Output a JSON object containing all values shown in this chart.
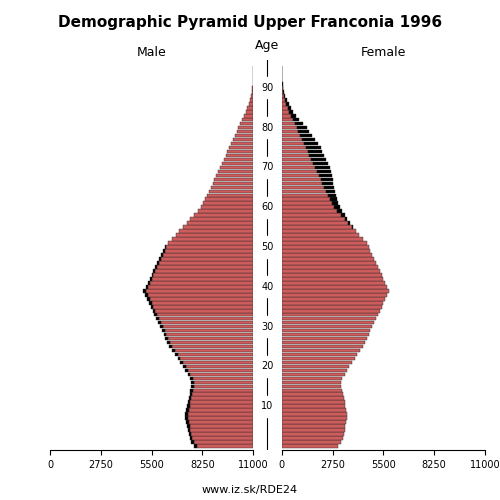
{
  "title": "Demographic Pyramid Upper Franconia 1996",
  "url": "www.iz.sk/RDE24",
  "bar_color": "#cd5c5c",
  "black_color": "#000000",
  "edge_color": "#2a2a2a",
  "xlim": 11000,
  "xticks": [
    0,
    2750,
    5500,
    8250,
    11000
  ],
  "age_ticks": [
    10,
    20,
    30,
    40,
    50,
    60,
    70,
    80,
    90
  ],
  "ages": [
    0,
    1,
    2,
    3,
    4,
    5,
    6,
    7,
    8,
    9,
    10,
    11,
    12,
    13,
    14,
    15,
    16,
    17,
    18,
    19,
    20,
    21,
    22,
    23,
    24,
    25,
    26,
    27,
    28,
    29,
    30,
    31,
    32,
    33,
    34,
    35,
    36,
    37,
    38,
    39,
    40,
    41,
    42,
    43,
    44,
    45,
    46,
    47,
    48,
    49,
    50,
    51,
    52,
    53,
    54,
    55,
    56,
    57,
    58,
    59,
    60,
    61,
    62,
    63,
    64,
    65,
    66,
    67,
    68,
    69,
    70,
    71,
    72,
    73,
    74,
    75,
    76,
    77,
    78,
    79,
    80,
    81,
    82,
    83,
    84,
    85,
    86,
    87,
    88,
    89,
    90,
    91,
    92,
    93,
    94,
    95
  ],
  "male_data": [
    3200,
    3350,
    3450,
    3500,
    3550,
    3600,
    3650,
    3700,
    3700,
    3650,
    3600,
    3550,
    3500,
    3450,
    3400,
    3350,
    3350,
    3400,
    3550,
    3700,
    3800,
    3950,
    4100,
    4250,
    4400,
    4550,
    4650,
    4750,
    4850,
    4950,
    5050,
    5150,
    5250,
    5350,
    5450,
    5550,
    5650,
    5750,
    5850,
    5950,
    5800,
    5700,
    5600,
    5500,
    5400,
    5300,
    5200,
    5100,
    5000,
    4900,
    4750,
    4600,
    4400,
    4200,
    4000,
    3800,
    3600,
    3400,
    3200,
    3000,
    2850,
    2700,
    2600,
    2500,
    2400,
    2300,
    2200,
    2100,
    2000,
    1900,
    1800,
    1700,
    1600,
    1500,
    1400,
    1300,
    1200,
    1100,
    1000,
    900,
    800,
    700,
    600,
    500,
    400,
    320,
    250,
    180,
    120,
    80,
    50,
    30,
    18,
    10,
    6,
    3
  ],
  "female_data": [
    3050,
    3200,
    3300,
    3350,
    3400,
    3450,
    3500,
    3550,
    3550,
    3500,
    3450,
    3400,
    3350,
    3300,
    3250,
    3200,
    3200,
    3280,
    3400,
    3550,
    3650,
    3800,
    3950,
    4100,
    4250,
    4400,
    4500,
    4600,
    4700,
    4800,
    4900,
    5000,
    5100,
    5200,
    5300,
    5400,
    5500,
    5600,
    5700,
    5800,
    5700,
    5600,
    5500,
    5400,
    5300,
    5200,
    5100,
    5000,
    4900,
    4800,
    4700,
    4600,
    4400,
    4200,
    4000,
    3850,
    3700,
    3550,
    3400,
    3250,
    3150,
    3050,
    3000,
    2950,
    2900,
    2850,
    2800,
    2750,
    2700,
    2650,
    2600,
    2500,
    2400,
    2300,
    2200,
    2100,
    1950,
    1800,
    1650,
    1500,
    1350,
    1150,
    950,
    780,
    620,
    490,
    370,
    260,
    175,
    115,
    72,
    43,
    26,
    15,
    8,
    4
  ]
}
